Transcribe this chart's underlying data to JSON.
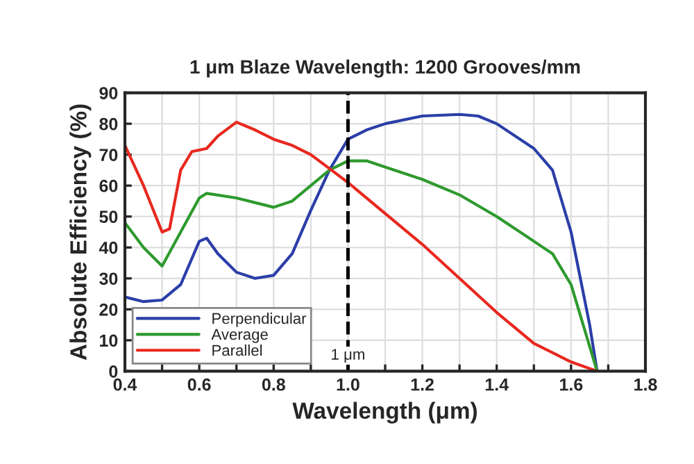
{
  "chart_data": {
    "type": "line",
    "title": "1 μm Blaze Wavelength: 1200 Grooves/mm",
    "xlabel": "Wavelength (μm)",
    "ylabel": "Absolute Efficiency (%)",
    "xlim": [
      0.4,
      1.8
    ],
    "ylim": [
      0,
      90
    ],
    "xticks": [
      0.4,
      {
        "value": 0.5,
        "label": null
      },
      0.6,
      {
        "value": 0.7,
        "label": null
      },
      0.8,
      {
        "value": 0.9,
        "label": null
      },
      {
        "value": 1,
        "label": "1.0"
      },
      {
        "value": 1.1,
        "label": null
      },
      1.2,
      {
        "value": 1.3,
        "label": null
      },
      1.4,
      {
        "value": 1.5,
        "label": null
      },
      1.6,
      {
        "value": 1.7,
        "label": null
      },
      1.8
    ],
    "yticks": [
      0,
      10,
      20,
      30,
      40,
      50,
      60,
      70,
      80,
      90
    ],
    "grid": true,
    "legend": "bottom left",
    "line_style": "solid",
    "marker": "none",
    "ref_lines": [
      {
        "axis": "x",
        "value": 1.0,
        "label": "1 μm",
        "color": "#000000",
        "line_style": "dashed"
      }
    ],
    "series": [
      {
        "name": "Perpendicular",
        "color": "#2b3ea8",
        "x": [
          0.4,
          0.45,
          0.5,
          0.55,
          0.6,
          0.62,
          0.65,
          0.7,
          0.75,
          0.8,
          0.85,
          0.9,
          0.95,
          1.0,
          1.05,
          1.1,
          1.2,
          1.3,
          1.35,
          1.4,
          1.5,
          1.55,
          1.6,
          1.65,
          1.67
        ],
        "values": [
          24,
          22.5,
          23,
          28,
          42,
          43,
          38,
          32,
          30,
          31,
          38,
          52,
          65,
          75,
          78,
          80,
          82.5,
          83,
          82.5,
          80,
          72,
          65,
          45,
          15,
          0
        ]
      },
      {
        "name": "Average",
        "color": "#2e9a2e",
        "x": [
          0.4,
          0.45,
          0.5,
          0.55,
          0.6,
          0.62,
          0.7,
          0.8,
          0.85,
          0.9,
          0.95,
          1.0,
          1.05,
          1.1,
          1.2,
          1.3,
          1.4,
          1.5,
          1.55,
          1.6,
          1.65,
          1.67
        ],
        "values": [
          48,
          40,
          34,
          45,
          56,
          57.5,
          56,
          53,
          55,
          60,
          65,
          68,
          68,
          66,
          62,
          57,
          50,
          42,
          38,
          28,
          8,
          0
        ]
      },
      {
        "name": "Parallel",
        "color": "#e8281e",
        "x": [
          0.4,
          0.45,
          0.5,
          0.52,
          0.55,
          0.58,
          0.62,
          0.65,
          0.7,
          0.75,
          0.8,
          0.85,
          0.9,
          0.95,
          1.0,
          1.1,
          1.2,
          1.3,
          1.4,
          1.5,
          1.6,
          1.67
        ],
        "values": [
          73,
          60,
          45,
          46,
          65,
          71,
          72,
          76,
          80.5,
          78,
          75,
          73,
          70,
          65.5,
          61,
          51,
          41,
          30,
          19,
          9,
          3,
          0
        ]
      }
    ]
  }
}
